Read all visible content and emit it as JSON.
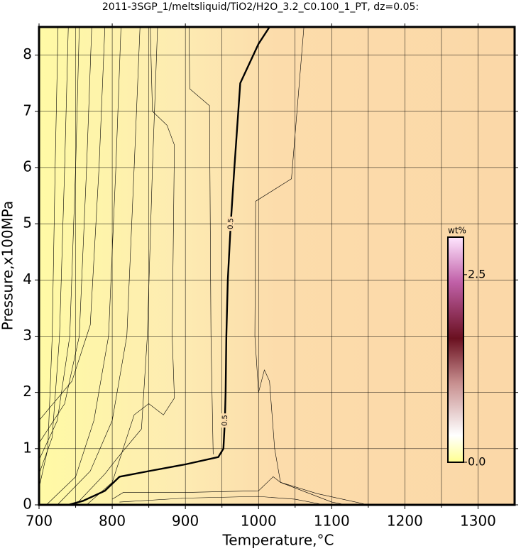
{
  "chart_data": {
    "type": "contour",
    "title": "2011-3SGP_1/meltsliquid/TiO2/H2O_3.2_C0.100_1_PT, dz=0.05:",
    "x_label": "Temperature,°C",
    "y_label": "Pressure,x100MPa",
    "xlim": [
      700,
      1350
    ],
    "ylim": [
      0,
      8.5
    ],
    "xticks": [
      700,
      800,
      900,
      1000,
      1100,
      1200,
      1300
    ],
    "yticks": [
      0,
      1,
      2,
      3,
      4,
      5,
      6,
      7,
      8
    ],
    "xminorticks": [
      750,
      850,
      950,
      1050,
      1150,
      1250
    ],
    "grid": true,
    "colorbar": {
      "label": "wt%",
      "lim": [
        0,
        3
      ],
      "ticks": [
        {
          "value": 0,
          "label": "0.0"
        },
        2.5
      ]
    },
    "contours": [
      {
        "label": "0.5",
        "bold": true,
        "x": [
          740,
          760,
          790,
          810,
          850,
          900,
          945,
          952,
          954,
          955,
          956,
          958,
          962,
          967,
          975,
          1000,
          1015
        ],
        "y": [
          0,
          0.07,
          0.25,
          0.5,
          0.6,
          0.72,
          0.85,
          1.0,
          1.5,
          2.0,
          3.0,
          4.0,
          5.0,
          6.0,
          7.5,
          8.2,
          8.5
        ]
      },
      {
        "x": [
          700,
          712,
          718,
          722,
          726
        ],
        "y": [
          0.3,
          1,
          3,
          6,
          8.5
        ]
      },
      {
        "x": [
          700,
          718,
          728,
          735,
          740
        ],
        "y": [
          0.55,
          1.2,
          3,
          6,
          8.5
        ]
      },
      {
        "x": [
          700,
          725,
          742,
          750,
          755
        ],
        "y": [
          0.8,
          1.5,
          3,
          6,
          8.5
        ]
      },
      {
        "x": [
          700,
          735,
          755,
          765,
          772
        ],
        "y": [
          1.1,
          1.8,
          3,
          6,
          8.5
        ]
      },
      {
        "x": [
          700,
          745,
          770,
          782,
          790
        ],
        "y": [
          1.5,
          2.2,
          3.2,
          6,
          8.5
        ]
      },
      {
        "x": [
          710,
          750,
          775,
          795,
          805,
          812
        ],
        "y": [
          0,
          0.5,
          1.5,
          3,
          6,
          8.5
        ]
      },
      {
        "x": [
          725,
          770,
          800,
          820,
          830,
          838
        ],
        "y": [
          0,
          0.6,
          1.5,
          3,
          6,
          8.5
        ]
      },
      {
        "x": [
          750,
          790,
          805,
          840,
          848,
          855,
          862
        ],
        "y": [
          0,
          0.55,
          0.8,
          1.35,
          3,
          6,
          8.5
        ]
      },
      {
        "x": [
          765,
          800,
          830,
          850,
          870,
          885,
          882,
          885,
          875,
          855,
          852
        ],
        "y": [
          0,
          0.4,
          1.6,
          1.8,
          1.6,
          1.9,
          3,
          6.4,
          6.75,
          7,
          8.5
        ]
      },
      {
        "x": [
          905,
          906,
          933,
          935,
          938
        ],
        "y": [
          8.5,
          7.4,
          7.1,
          3,
          0.9
        ]
      },
      {
        "x": [
          1062,
          1045,
          996,
          995,
          1000,
          1008,
          1015,
          1022,
          1030,
          1080,
          1150
        ],
        "y": [
          8.5,
          5.8,
          5.4,
          3,
          2,
          2.4,
          2.2,
          1,
          0.4,
          0.2,
          0
        ]
      },
      {
        "x": [
          800,
          815,
          900,
          1000,
          1020,
          1030,
          1100,
          1120
        ],
        "y": [
          0.1,
          0.22,
          0.22,
          0.25,
          0.5,
          0.4,
          0.05,
          0
        ]
      },
      {
        "x": [
          810,
          900,
          1000,
          1050,
          1090
        ],
        "y": [
          0.05,
          0.12,
          0.15,
          0.1,
          0
        ]
      }
    ]
  }
}
